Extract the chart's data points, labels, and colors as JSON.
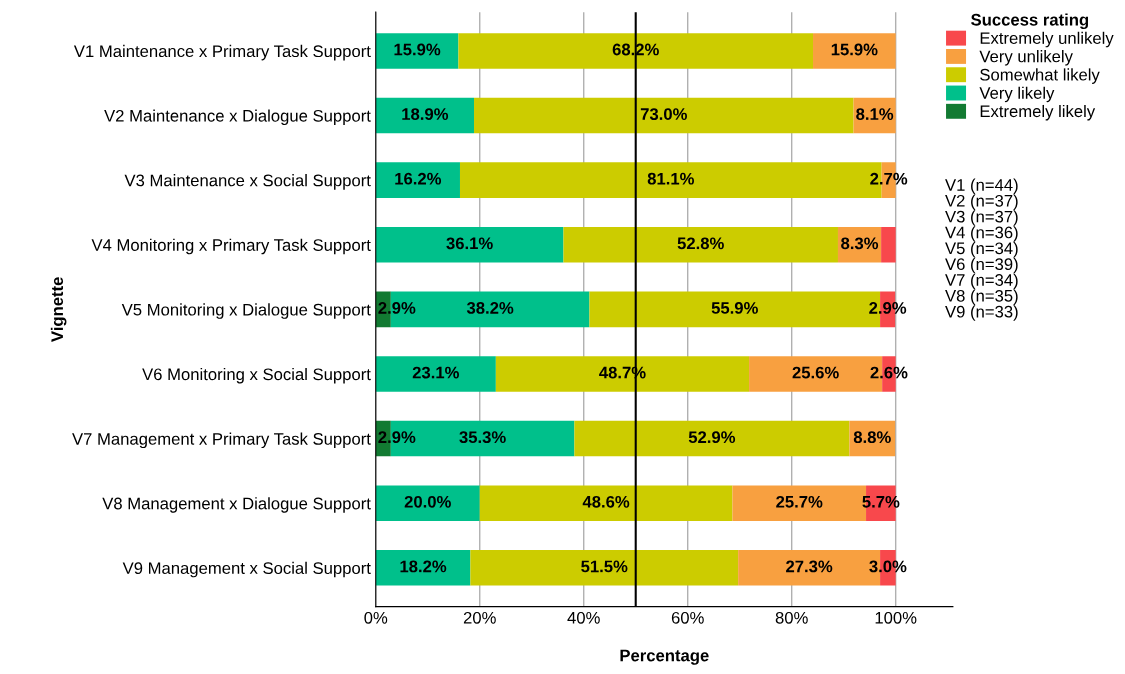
{
  "chart_data": {
    "type": "bar",
    "orientation": "horizontal",
    "stacked": true,
    "xlabel": "Percentage",
    "ylabel": "Vignette",
    "legend_title": "Success rating",
    "legend": "right",
    "grid": "x",
    "categories": [
      "V1 Maintenance x Primary Task Support",
      "V2 Maintenance x Dialogue Support",
      "V3 Maintenance x Social Support",
      "V4 Monitoring x Primary Task Support",
      "V5 Monitoring x Dialogue Support",
      "V6 Monitoring x Social Support",
      "V7 Management x Primary Task Support",
      "V8 Management x Dialogue Support",
      "V9 Management x Social Support"
    ],
    "series": [
      {
        "name": "Extremely likely",
        "color": "#127a32",
        "values": [
          0,
          0,
          0,
          0,
          2.9,
          0,
          2.9,
          0,
          0
        ],
        "value_labels": [
          null,
          null,
          null,
          null,
          "2.9%",
          null,
          "2.9%",
          null,
          null
        ]
      },
      {
        "name": "Very likely",
        "color": "#00c08b",
        "values": [
          15.9,
          18.9,
          16.2,
          36.1,
          38.2,
          23.1,
          35.3,
          20.0,
          18.2
        ],
        "value_labels": [
          "15.9%",
          "18.9%",
          "16.2%",
          "36.1%",
          "38.2%",
          "23.1%",
          "35.3%",
          "20.0%",
          "18.2%"
        ]
      },
      {
        "name": "Somewhat likely",
        "color": "#cccc00",
        "values": [
          68.2,
          73.0,
          81.1,
          52.8,
          55.9,
          48.7,
          52.9,
          48.6,
          51.5
        ],
        "value_labels": [
          "68.2%",
          "73.0%",
          "81.1%",
          "52.8%",
          "55.9%",
          "48.7%",
          "52.9%",
          "48.6%",
          "51.5%"
        ]
      },
      {
        "name": "Very unlikely",
        "color": "#f8a040",
        "values": [
          15.9,
          8.1,
          2.7,
          8.3,
          0,
          25.6,
          8.8,
          25.7,
          27.3
        ],
        "value_labels": [
          "15.9%",
          "8.1%",
          "2.7%",
          "8.3%",
          null,
          "25.6%",
          "8.8%",
          "25.7%",
          "27.3%"
        ]
      },
      {
        "name": "Extremely unlikely",
        "color": "#f8484c",
        "values": [
          0,
          0,
          0,
          2.8,
          2.9,
          2.6,
          0,
          5.7,
          3.0
        ],
        "value_labels": [
          null,
          null,
          null,
          null,
          "2.9%",
          "2.6%",
          null,
          "5.7%",
          "3.0%"
        ]
      }
    ],
    "xlim": [
      0,
      111
    ],
    "xticks": [
      {
        "value": 0,
        "label": "0%"
      },
      {
        "value": 20,
        "label": "20%"
      },
      {
        "value": 40,
        "label": "40%"
      },
      {
        "value": 60,
        "label": "60%"
      },
      {
        "value": 80,
        "label": "80%"
      },
      {
        "value": 100,
        "label": "100%"
      }
    ],
    "ref_lines": [
      {
        "axis": "x",
        "value": 50,
        "color": "#000000"
      }
    ],
    "annotations": [
      "V1 (n=44)",
      "V2 (n=37)",
      "V3 (n=37)",
      "V4 (n=36)",
      "V5 (n=34)",
      "V6 (n=39)",
      "V7 (n=34)",
      "V8 (n=35)",
      "V9 (n=33)"
    ]
  }
}
